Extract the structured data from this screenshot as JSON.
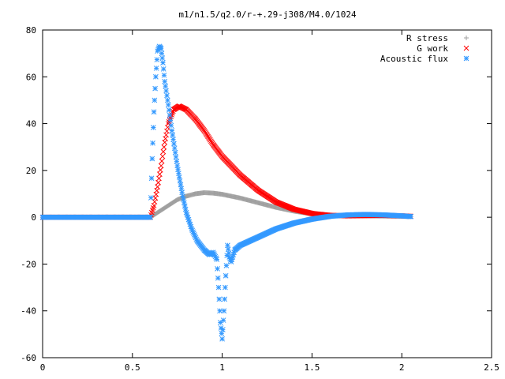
{
  "chart_data": {
    "type": "scatter",
    "title": "m1/n1.5/q2.0/r-+.29-j308/M4.0/1024",
    "xlabel": "",
    "ylabel": "",
    "xlim": [
      0,
      2.5
    ],
    "ylim": [
      -60,
      80
    ],
    "x_ticks": [
      "0",
      "0.5",
      "1",
      "1.5",
      "2",
      "2.5"
    ],
    "y_ticks": [
      "80",
      "60",
      "40",
      "20",
      "0",
      "-20",
      "-40",
      "-60"
    ],
    "grid": false,
    "legend_position": "top-right",
    "series": [
      {
        "name": "R stress",
        "marker": "plus",
        "color": "#a0a0a0",
        "points": [
          [
            0,
            0
          ],
          [
            0.2,
            0
          ],
          [
            0.4,
            0
          ],
          [
            0.6,
            0
          ],
          [
            0.62,
            1
          ],
          [
            0.66,
            3
          ],
          [
            0.7,
            5
          ],
          [
            0.75,
            7.5
          ],
          [
            0.8,
            9
          ],
          [
            0.85,
            10
          ],
          [
            0.9,
            10.5
          ],
          [
            0.95,
            10.3
          ],
          [
            1.0,
            9.8
          ],
          [
            1.1,
            8.2
          ],
          [
            1.2,
            6.2
          ],
          [
            1.3,
            4.2
          ],
          [
            1.4,
            2.6
          ],
          [
            1.5,
            1.4
          ],
          [
            1.6,
            0.9
          ],
          [
            1.7,
            0.7
          ],
          [
            1.8,
            0.6
          ],
          [
            1.9,
            0.5
          ],
          [
            2.0,
            0.4
          ],
          [
            2.05,
            0.3
          ]
        ]
      },
      {
        "name": "G work",
        "marker": "cross",
        "color": "#ff0000",
        "points": [
          [
            0,
            0
          ],
          [
            0.2,
            0
          ],
          [
            0.4,
            0
          ],
          [
            0.6,
            0
          ],
          [
            0.62,
            5
          ],
          [
            0.64,
            13
          ],
          [
            0.66,
            22
          ],
          [
            0.68,
            32
          ],
          [
            0.7,
            40
          ],
          [
            0.73,
            46
          ],
          [
            0.76,
            47.5
          ],
          [
            0.8,
            46
          ],
          [
            0.85,
            42
          ],
          [
            0.9,
            37
          ],
          [
            0.95,
            31
          ],
          [
            1.0,
            26
          ],
          [
            1.1,
            18
          ],
          [
            1.2,
            11.5
          ],
          [
            1.3,
            6.5
          ],
          [
            1.4,
            3.4
          ],
          [
            1.5,
            1.6
          ],
          [
            1.6,
            0.8
          ],
          [
            1.7,
            0.6
          ],
          [
            1.8,
            0.7
          ],
          [
            1.9,
            0.8
          ],
          [
            2.0,
            0.6
          ],
          [
            2.05,
            0.4
          ]
        ]
      },
      {
        "name": "Acoustic flux",
        "marker": "star",
        "color": "#3399ff",
        "points": [
          [
            0,
            0
          ],
          [
            0.2,
            0
          ],
          [
            0.4,
            0
          ],
          [
            0.6,
            0
          ],
          [
            0.61,
            25
          ],
          [
            0.62,
            45
          ],
          [
            0.63,
            60
          ],
          [
            0.64,
            71
          ],
          [
            0.65,
            73
          ],
          [
            0.66,
            72
          ],
          [
            0.67,
            66
          ],
          [
            0.68,
            58
          ],
          [
            0.7,
            48
          ],
          [
            0.72,
            37
          ],
          [
            0.75,
            22
          ],
          [
            0.78,
            9
          ],
          [
            0.8,
            2
          ],
          [
            0.83,
            -5
          ],
          [
            0.86,
            -10
          ],
          [
            0.9,
            -14
          ],
          [
            0.93,
            -16
          ],
          [
            0.95,
            -15
          ],
          [
            0.97,
            -18
          ],
          [
            0.98,
            -30
          ],
          [
            0.99,
            -45
          ],
          [
            1.0,
            -52
          ],
          [
            1.01,
            -40
          ],
          [
            1.02,
            -25
          ],
          [
            1.03,
            -12
          ],
          [
            1.04,
            -17
          ],
          [
            1.05,
            -19
          ],
          [
            1.07,
            -14
          ],
          [
            1.1,
            -12
          ],
          [
            1.2,
            -8.5
          ],
          [
            1.3,
            -5
          ],
          [
            1.4,
            -2.5
          ],
          [
            1.5,
            -0.8
          ],
          [
            1.6,
            0.4
          ],
          [
            1.7,
            1
          ],
          [
            1.8,
            1.2
          ],
          [
            1.9,
            1
          ],
          [
            2.0,
            0.6
          ],
          [
            2.05,
            0.3
          ]
        ]
      }
    ]
  }
}
